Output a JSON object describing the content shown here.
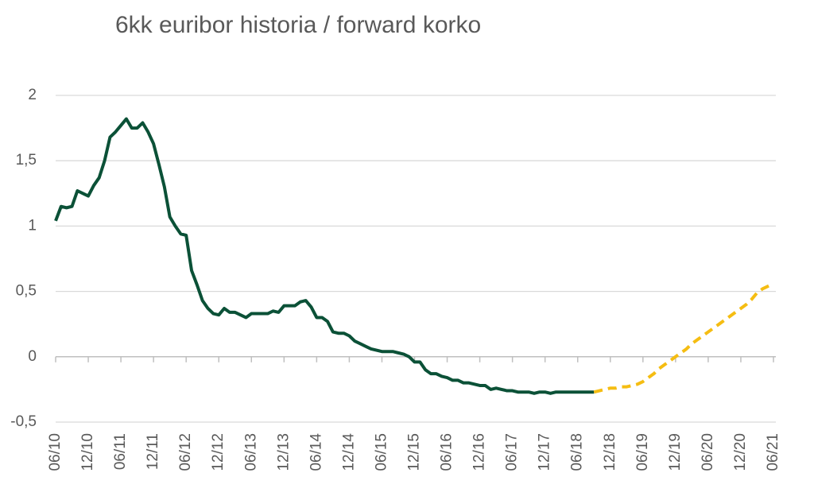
{
  "chart_data": {
    "type": "line",
    "title": "6kk euribor historia / forward korko",
    "categories": [
      "06/10",
      null,
      null,
      null,
      null,
      null,
      "12/10",
      null,
      null,
      null,
      null,
      null,
      "06/11",
      null,
      null,
      null,
      null,
      null,
      "12/11",
      null,
      null,
      null,
      null,
      null,
      "06/12",
      null,
      null,
      null,
      null,
      null,
      "12/12",
      null,
      null,
      null,
      null,
      null,
      "06/13",
      null,
      null,
      null,
      null,
      null,
      "12/13",
      null,
      null,
      null,
      null,
      null,
      "06/14",
      null,
      null,
      null,
      null,
      null,
      "12/14",
      null,
      null,
      null,
      null,
      null,
      "06/15",
      null,
      null,
      null,
      null,
      null,
      "12/15",
      null,
      null,
      null,
      null,
      null,
      "06/16",
      null,
      null,
      null,
      null,
      null,
      "12/16",
      null,
      null,
      null,
      null,
      null,
      "06/17",
      null,
      null,
      null,
      null,
      null,
      "12/17",
      null,
      null,
      null,
      null,
      null,
      "06/18",
      null,
      null,
      null,
      null,
      null,
      "12/18",
      null,
      null,
      null,
      null,
      null,
      "06/19",
      null,
      null,
      null,
      null,
      null,
      "12/19",
      null,
      null,
      null,
      null,
      null,
      "06/20",
      null,
      null,
      null,
      null,
      null,
      "12/20",
      null,
      null,
      null,
      null,
      null,
      "06/21"
    ],
    "series": [
      {
        "color": "#0b5137",
        "dashed": false,
        "values": [
          1.04,
          1.15,
          1.14,
          1.15,
          1.27,
          1.25,
          1.23,
          1.31,
          1.37,
          1.5,
          1.68,
          1.72,
          1.77,
          1.82,
          1.75,
          1.75,
          1.79,
          1.72,
          1.63,
          1.47,
          1.3,
          1.07,
          1.0,
          0.94,
          0.93,
          0.66,
          0.55,
          0.43,
          0.37,
          0.33,
          0.32,
          0.37,
          0.34,
          0.34,
          0.32,
          0.3,
          0.33,
          0.33,
          0.33,
          0.33,
          0.35,
          0.34,
          0.39,
          0.39,
          0.39,
          0.42,
          0.43,
          0.38,
          0.3,
          0.3,
          0.27,
          0.19,
          0.18,
          0.18,
          0.16,
          0.12,
          0.1,
          0.08,
          0.06,
          0.05,
          0.04,
          0.04,
          0.04,
          0.03,
          0.02,
          0.0,
          -0.04,
          -0.04,
          -0.1,
          -0.13,
          -0.13,
          -0.15,
          -0.16,
          -0.18,
          -0.18,
          -0.2,
          -0.2,
          -0.21,
          -0.22,
          -0.22,
          -0.25,
          -0.24,
          -0.25,
          -0.26,
          -0.26,
          -0.27,
          -0.27,
          -0.27,
          -0.28,
          -0.27,
          -0.27,
          -0.28,
          -0.27,
          -0.27,
          -0.27,
          -0.27,
          -0.27,
          -0.27,
          -0.27,
          -0.27,
          null,
          null,
          null,
          null,
          null,
          null,
          null,
          null,
          null,
          null,
          null,
          null,
          null,
          null,
          null,
          null,
          null,
          null,
          null,
          null,
          null,
          null,
          null,
          null,
          null,
          null,
          null,
          null,
          null,
          null,
          null,
          null,
          null
        ]
      },
      {
        "color": "#f5bd12",
        "dashed": true,
        "values": [
          null,
          null,
          null,
          null,
          null,
          null,
          null,
          null,
          null,
          null,
          null,
          null,
          null,
          null,
          null,
          null,
          null,
          null,
          null,
          null,
          null,
          null,
          null,
          null,
          null,
          null,
          null,
          null,
          null,
          null,
          null,
          null,
          null,
          null,
          null,
          null,
          null,
          null,
          null,
          null,
          null,
          null,
          null,
          null,
          null,
          null,
          null,
          null,
          null,
          null,
          null,
          null,
          null,
          null,
          null,
          null,
          null,
          null,
          null,
          null,
          null,
          null,
          null,
          null,
          null,
          null,
          null,
          null,
          null,
          null,
          null,
          null,
          null,
          null,
          null,
          null,
          null,
          null,
          null,
          null,
          null,
          null,
          null,
          null,
          null,
          null,
          null,
          null,
          null,
          null,
          null,
          null,
          null,
          null,
          null,
          null,
          null,
          null,
          null,
          -0.27,
          -0.26,
          -0.25,
          -0.24,
          -0.24,
          -0.23,
          -0.23,
          -0.22,
          -0.21,
          -0.19,
          -0.16,
          -0.13,
          -0.09,
          -0.06,
          -0.03,
          0.0,
          0.03,
          0.06,
          0.1,
          0.13,
          0.16,
          0.19,
          0.22,
          0.25,
          0.28,
          0.31,
          0.34,
          0.37,
          0.4,
          0.44,
          0.49,
          0.52,
          0.54,
          0.56
        ]
      }
    ],
    "ylim": [
      -0.5,
      2
    ],
    "yticks": [
      {
        "value": -0.5,
        "label": "-0,5"
      },
      0,
      {
        "value": 0.5,
        "label": "0,5"
      },
      1,
      {
        "value": 1.5,
        "label": "1,5"
      },
      2
    ],
    "grid": true
  }
}
